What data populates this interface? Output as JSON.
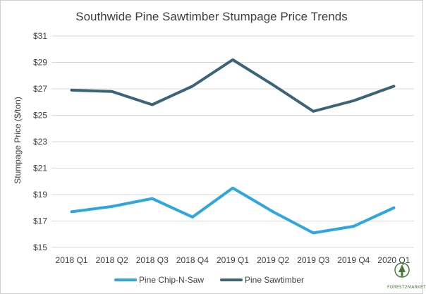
{
  "chart_data": {
    "type": "line",
    "title": "Southwide Pine Sawtimber Stumpage Price Trends",
    "ylabel": "Stumpage Price ($/ton)",
    "xlabel": "",
    "categories": [
      "2018 Q1",
      "2018 Q2",
      "2018 Q3",
      "2018 Q4",
      "2019 Q1",
      "2019 Q2",
      "2019 Q3",
      "2019 Q4",
      "2020 Q1"
    ],
    "ylim": [
      15,
      31
    ],
    "yticks": [
      15,
      17,
      19,
      21,
      23,
      25,
      27,
      29,
      31
    ],
    "ytick_labels": [
      "$15",
      "$17",
      "$19",
      "$21",
      "$23",
      "$25",
      "$27",
      "$29",
      "$31"
    ],
    "grid": true,
    "legend_position": "bottom",
    "series": [
      {
        "name": "Pine Chip-N-Saw",
        "color": "#2ea6df",
        "values": [
          17.7,
          18.1,
          18.7,
          17.3,
          19.5,
          17.7,
          16.1,
          16.6,
          18.0
        ]
      },
      {
        "name": "Pine Sawtimber",
        "color": "#3a6478",
        "values": [
          26.9,
          26.8,
          25.8,
          27.2,
          29.2,
          27.3,
          25.3,
          26.1,
          27.2
        ]
      }
    ]
  },
  "logo": {
    "text": "FOREST2MARKET",
    "icon": "tree-logo-icon"
  }
}
